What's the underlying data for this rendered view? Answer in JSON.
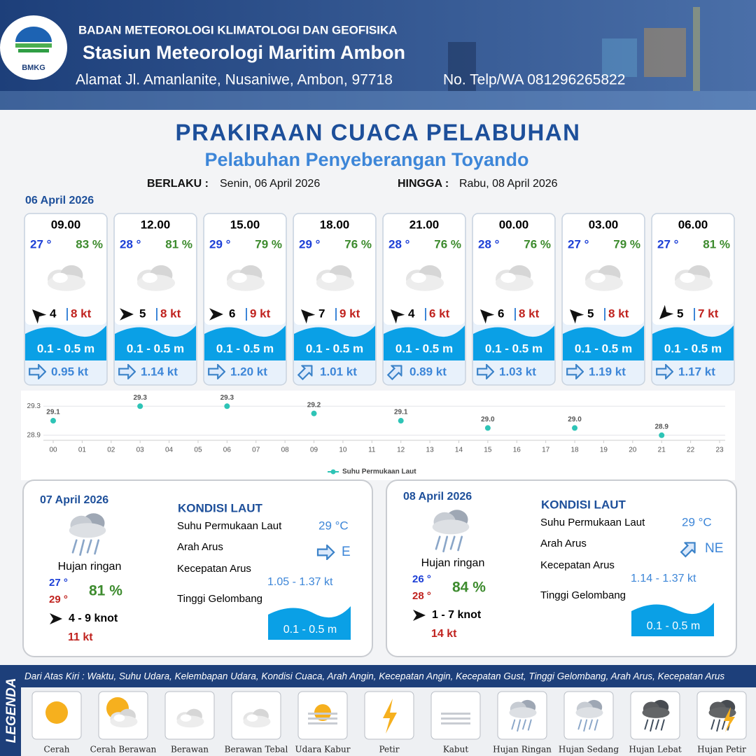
{
  "header": {
    "logo": "BMKG",
    "org": "BADAN METEOROLOGI KLIMATOLOGI DAN GEOFISIKA",
    "station": "Stasiun Meteorologi Maritim Ambon",
    "address": "Alamat Jl. Amanlanite, Nusaniwe, Ambon, 97718",
    "phone": "No. Telp/WA  081296265822"
  },
  "title": "PRAKIRAAN CUACA PELABUHAN",
  "subtitle": "Pelabuhan Penyeberangan Toyando",
  "validity": {
    "from_label": "BERLAKU :",
    "from": "Senin, 06 April 2026",
    "to_label": "HINGGA :",
    "to": "Rabu, 08 April 2026"
  },
  "day1": {
    "date": "06 April 2026",
    "cards": [
      {
        "time": "09.00",
        "temp": "27 °",
        "rh": "83 %",
        "wind": "4",
        "gust": "8 kt",
        "wave": "0.1 - 0.5 m",
        "current": "0.95 kt"
      },
      {
        "time": "12.00",
        "temp": "28 °",
        "rh": "81 %",
        "wind": "5",
        "gust": "8 kt",
        "wave": "0.1 - 0.5 m",
        "current": "1.14 kt"
      },
      {
        "time": "15.00",
        "temp": "29 °",
        "rh": "79 %",
        "wind": "6",
        "gust": "9 kt",
        "wave": "0.1 - 0.5 m",
        "current": "1.20 kt"
      },
      {
        "time": "18.00",
        "temp": "29 °",
        "rh": "76 %",
        "wind": "7",
        "gust": "9 kt",
        "wave": "0.1 - 0.5 m",
        "current": "1.01 kt"
      },
      {
        "time": "21.00",
        "temp": "28 °",
        "rh": "76 %",
        "wind": "4",
        "gust": "6 kt",
        "wave": "0.1 - 0.5 m",
        "current": "0.89 kt"
      },
      {
        "time": "00.00",
        "temp": "28 °",
        "rh": "76 %",
        "wind": "6",
        "gust": "8 kt",
        "wave": "0.1 - 0.5 m",
        "current": "1.03 kt"
      },
      {
        "time": "03.00",
        "temp": "27 °",
        "rh": "79 %",
        "wind": "5",
        "gust": "8 kt",
        "wave": "0.1 - 0.5 m",
        "current": "1.19 kt"
      },
      {
        "time": "06.00",
        "temp": "27 °",
        "rh": "81 %",
        "wind": "5",
        "gust": "7 kt",
        "wave": "0.1 - 0.5 m",
        "current": "1.17 kt"
      }
    ]
  },
  "sst_chart": {
    "type": "scatter",
    "series_name": "Suhu Permukaan Laut",
    "color": "#2ec4b6",
    "x": [
      0,
      3,
      6,
      9,
      12,
      15,
      18,
      21
    ],
    "values": [
      29.1,
      29.3,
      29.3,
      29.2,
      29.1,
      29.0,
      29.0,
      28.9
    ],
    "value_labels": [
      "29.1",
      "29.3",
      "29.3",
      "29.2",
      "29.1",
      "29.0",
      "29.0",
      "28.9"
    ],
    "xlim": [
      0,
      23
    ],
    "xticks": [
      {
        "value": 0,
        "label": "00"
      },
      {
        "value": 1,
        "label": "01"
      },
      {
        "value": 2,
        "label": "02"
      },
      {
        "value": 3,
        "label": "03"
      },
      {
        "value": 4,
        "label": "04"
      },
      {
        "value": 5,
        "label": "05"
      },
      {
        "value": 6,
        "label": "06"
      },
      {
        "value": 7,
        "label": "07"
      },
      {
        "value": 8,
        "label": "08"
      },
      {
        "value": 9,
        "label": "09"
      },
      10,
      11,
      12,
      13,
      14,
      15,
      16,
      17,
      18,
      19,
      20,
      21,
      22,
      23
    ],
    "ylim": [
      28.85,
      29.37
    ],
    "yticks": [
      28.9,
      29.3
    ]
  },
  "days": [
    {
      "date": "07 April 2026",
      "weather": "Hujan ringan",
      "tmin": "27 °",
      "tmax": "29 °",
      "rh": "81 %",
      "wind": "4  - 9 knot",
      "gust": "11 kt",
      "sea": {
        "heading": "KONDISI LAUT",
        "sst_label": "Suhu Permukaan Laut",
        "sst": "29 °C",
        "dir_label": "Arah Arus",
        "dir": "E",
        "speed_label": "Kecepatan Arus",
        "speed": "1.05 - 1.37 kt",
        "wave_label": "Tinggi Gelombang",
        "wave": "0.1 - 0.5 m"
      }
    },
    {
      "date": "08 April 2026",
      "weather": "Hujan ringan",
      "tmin": "26 °",
      "tmax": "28 °",
      "rh": "84 %",
      "wind": "1  - 7 knot",
      "gust": "14 kt",
      "sea": {
        "heading": "KONDISI LAUT",
        "sst_label": "Suhu Permukaan Laut",
        "sst": "29 °C",
        "dir_label": "Arah Arus",
        "dir": "NE",
        "speed_label": "Kecepatan Arus",
        "speed": "1.14 - 1.37 kt",
        "wave_label": "Tinggi Gelombang",
        "wave": "0.1 - 0.5 m"
      }
    }
  ],
  "legend": {
    "title": "LEGENDA",
    "note": "Dari Atas Kiri : Waktu, Suhu Udara, Kelembapan Udara, Kondisi Cuaca, Arah Angin, Kecepatan Angin, Kecepatan Gust, Tinggi Gelombang, Arah Arus, Kecepatan Arus",
    "items": [
      "Cerah",
      "Cerah Berawan",
      "Berawan",
      "Berawan Tebal",
      "Udara Kabur",
      "Petir",
      "Kabut",
      "Hujan Ringan",
      "Hujan Sedang",
      "Hujan Lebat",
      "Hujan Petir"
    ]
  }
}
